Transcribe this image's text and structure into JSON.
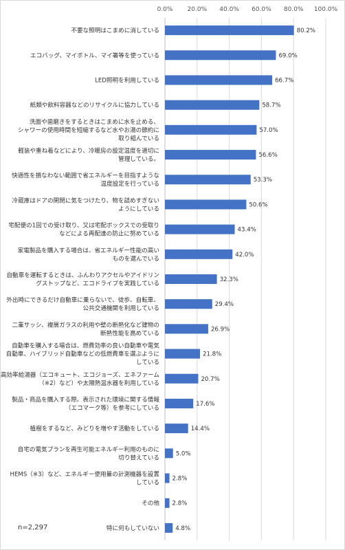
{
  "chart_data": {
    "type": "bar",
    "orientation": "horizontal",
    "x_ticks": [
      "0.0%",
      "20.0%",
      "40.0%",
      "60.0%",
      "80.0%",
      "100.0%"
    ],
    "xlim": [
      0,
      100
    ],
    "grid": true,
    "note": "n=2,297",
    "bar_color": "#4472C4",
    "categories": [
      [
        "不要な照明はこまめに消している"
      ],
      [
        "エコバッグ、マイボトル、マイ箸等を使っている"
      ],
      [
        "LED照明を利用している"
      ],
      [
        "紙類や飲料容器などのリサイクルに協力している"
      ],
      [
        "洗面や歯磨きをするときはこまめに水を止める、",
        "シャワーの使用時間を短縮するなど水やお湯の節約に",
        "取り組んでいる"
      ],
      [
        "軽装や重ね着などにより、冷暖房の設定温度を適切に",
        "管理している。"
      ],
      [
        "快適性を損なわない範囲で省エネルギーを目指すような",
        "温度設定を行っている"
      ],
      [
        "冷蔵庫はドアの開閉に気をつけたり、物を詰めすぎない",
        "ようにしている"
      ],
      [
        "宅配便の1回での受け取り、又は宅配ボックスでの受取り",
        "などによる再配達の防止に努めている"
      ],
      [
        "家電製品を購入する場合は、省エネルギー性能の高い",
        "ものを選んでいる"
      ],
      [
        "自動車を運転するときは、ふんわりアクセルやアイドリン",
        "グストップなど、エコドライブを実践している"
      ],
      [
        "外出時にできるだけ自動車に乗らないで、徒歩、自転車、",
        "公共交通機関を利用している"
      ],
      [
        "二重サッシ、複層ガラスの利用や壁の断熱化など建物の",
        "断熱性能を高めている"
      ],
      [
        "自動車を購入する場合は、燃費効率の良い自動車や電気",
        "自動車、ハイブリッド自動車などの低燃費車を選ぶように",
        "している"
      ],
      [
        "高効率給湯器（エコキュート、エコジョーズ、エネファーム",
        "（※2）など）や太陽熱温水器を利用している"
      ],
      [
        "製品・商品を購入する際、表示された環境に関する情報",
        "（エコマーク等）を参考にしている"
      ],
      [
        "植樹をするなど、みどりを増やす活動をしている"
      ],
      [
        "自宅の電気プランを再生可能エネルギー利用のものに",
        "切り替えている"
      ],
      [
        "HEMS（※3）など、エネルギー使用量の計測機器を設置",
        "している"
      ],
      [
        "その他"
      ],
      [
        "特に何もしていない"
      ]
    ],
    "values": [
      80.2,
      69.0,
      66.7,
      58.7,
      57.0,
      56.6,
      53.3,
      50.6,
      43.4,
      42.0,
      32.3,
      29.4,
      26.9,
      21.8,
      20.7,
      17.6,
      14.4,
      5.0,
      2.8,
      2.8,
      4.8
    ],
    "value_labels": [
      "80.2%",
      "69.0%",
      "66.7%",
      "58.7%",
      "57.0%",
      "56.6%",
      "53.3%",
      "50.6%",
      "43.4%",
      "42.0%",
      "32.3%",
      "29.4%",
      "26.9%",
      "21.8%",
      "20.7%",
      "17.6%",
      "14.4%",
      "5.0%",
      "2.8%",
      "2.8%",
      "4.8%"
    ]
  }
}
